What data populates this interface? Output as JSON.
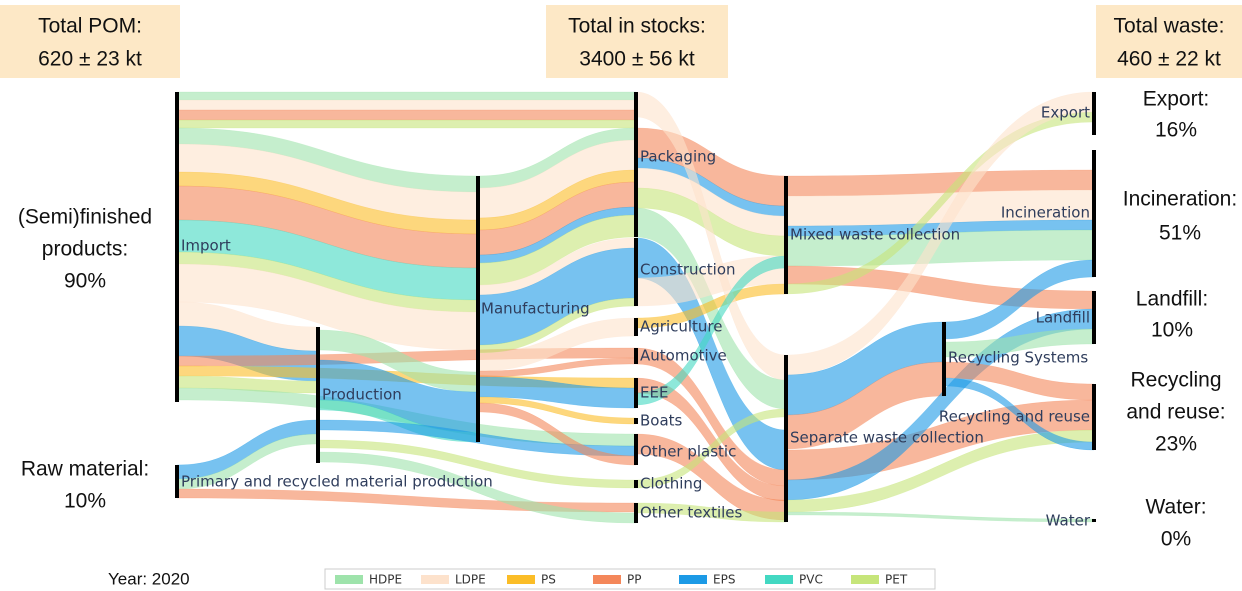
{
  "headers": [
    {
      "title": "Total POM:",
      "value": "620 ± 23 kt"
    },
    {
      "title": "Total in stocks:",
      "value": "3400 ± 56 kt"
    },
    {
      "title": "Total waste:",
      "value": "460 ± 22 kt"
    }
  ],
  "left_labels": [
    {
      "lines": [
        "(Semi)finished",
        "products:",
        "90%"
      ]
    },
    {
      "lines": [
        "Raw material:",
        "10%"
      ]
    }
  ],
  "right_labels": [
    {
      "lines": [
        "Export:",
        "16%"
      ]
    },
    {
      "lines": [
        "Incineration:",
        "51%"
      ]
    },
    {
      "lines": [
        "Landfill:",
        "10%"
      ]
    },
    {
      "lines": [
        "Recycling",
        "and reuse:",
        "23%"
      ]
    },
    {
      "lines": [
        "Water:",
        "0%"
      ]
    }
  ],
  "nodes": [
    {
      "label": "Import"
    },
    {
      "label": "Primary and recycled material production"
    },
    {
      "label": "Production"
    },
    {
      "label": "Manufacturing"
    },
    {
      "label": "Packaging"
    },
    {
      "label": "Construction"
    },
    {
      "label": "Agriculture"
    },
    {
      "label": "Automotive"
    },
    {
      "label": "EEE"
    },
    {
      "label": "Boats"
    },
    {
      "label": "Other plastic"
    },
    {
      "label": "Clothing"
    },
    {
      "label": "Other textiles"
    },
    {
      "label": "Mixed waste collection"
    },
    {
      "label": "Separate waste collection"
    },
    {
      "label": "Recycling Systems"
    },
    {
      "label": "Export"
    },
    {
      "label": "Incineration"
    },
    {
      "label": "Landfill"
    },
    {
      "label": "Recycling and reuse"
    },
    {
      "label": "Water"
    }
  ],
  "legend": {
    "year": "Year: 2020",
    "items": [
      {
        "label": "HDPE",
        "color": "#9ee3ab"
      },
      {
        "label": "LDPE",
        "color": "#fde2cc"
      },
      {
        "label": "PS",
        "color": "#fbbd27"
      },
      {
        "label": "PP",
        "color": "#f4875a"
      },
      {
        "label": "EPS",
        "color": "#1c9ae6"
      },
      {
        "label": "PVC",
        "color": "#43d8c2"
      },
      {
        "label": "PET",
        "color": "#c6e57a"
      }
    ]
  }
}
